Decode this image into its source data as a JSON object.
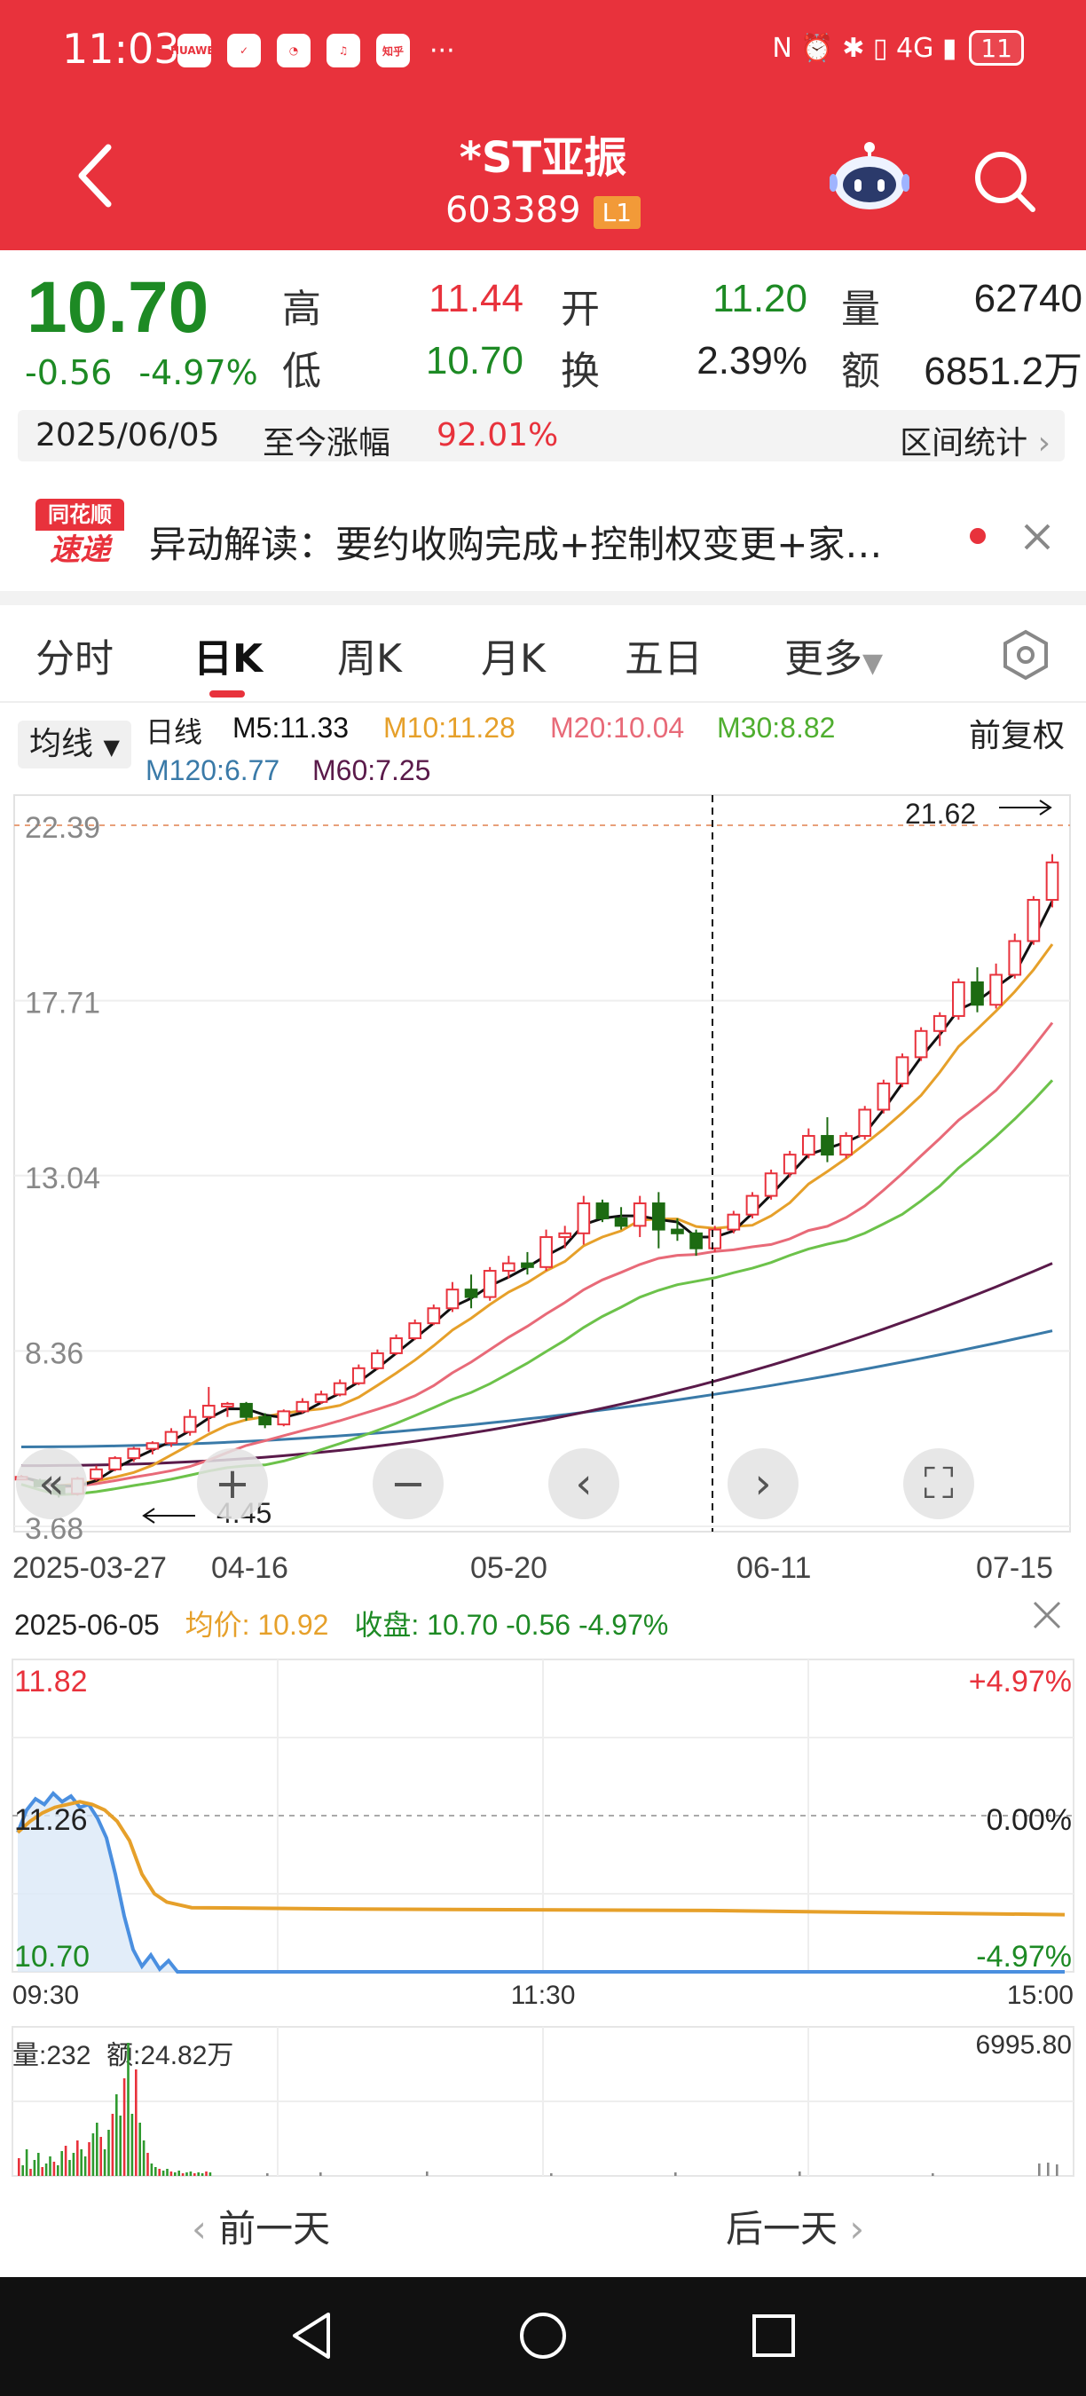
{
  "status": {
    "time": "11:03",
    "apps": [
      "HUAWEI",
      "✓",
      "◔",
      "♫",
      "知乎"
    ],
    "dots": "···",
    "icons": "N ⏰ ✱ ▯ 4G ▮",
    "battery": "11"
  },
  "header": {
    "title": "*ST亚振",
    "code": "603389",
    "level": "L1"
  },
  "quote": {
    "price": "10.70",
    "change": "-0.56",
    "change_pct": "-4.97%",
    "high_label": "高",
    "high": "11.44",
    "low_label": "低",
    "low": "10.70",
    "open_label": "开",
    "open": "11.20",
    "turn_label": "换",
    "turn": "2.39%",
    "vol_label": "量",
    "vol": "62740",
    "amt_label": "额",
    "amt": "6851.2万"
  },
  "range": {
    "date": "2025/06/05",
    "label": "至今涨幅",
    "pct": "92.01%",
    "stats": "区间统计"
  },
  "news": {
    "logo_top": "同花顺",
    "logo_bottom": "速递",
    "text": "异动解读：要约收购完成+控制权变更+家…"
  },
  "tabs": [
    "分时",
    "日K",
    "周K",
    "月K",
    "五日",
    "更多"
  ],
  "indicators": {
    "button": "均线",
    "line": "日线",
    "m5": "M5:11.33",
    "m10": "M10:11.28",
    "m20": "M20:10.04",
    "m30": "M30:8.82",
    "m120": "M120:6.77",
    "m60": "M60:7.25",
    "adjust": "前复权"
  },
  "colors": {
    "up": "#e8323c",
    "down": "#1d6b12",
    "m5": "#111111",
    "m10": "#e6a02a",
    "m20": "#e86a78",
    "m30": "#6cc24a",
    "m60": "#5a1a4a",
    "m120": "#3a7aa8"
  },
  "chart_data": [
    {
      "type": "candlestick",
      "y_ticks": [
        "22.39",
        "17.71",
        "13.04",
        "8.36",
        "3.68"
      ],
      "ylim": [
        3.68,
        22.39
      ],
      "x_ticks": [
        "2025-03-27",
        "04-16",
        "05-20",
        "06-11",
        "07-15"
      ],
      "max_label": "21.62",
      "min_label": "4.45",
      "candles": [
        [
          5.0,
          5.05,
          4.95,
          5.0
        ],
        [
          4.9,
          4.95,
          4.75,
          4.75
        ],
        [
          4.75,
          4.8,
          4.45,
          4.55
        ],
        [
          4.55,
          5.0,
          4.5,
          4.95
        ],
        [
          4.95,
          5.3,
          4.9,
          5.2
        ],
        [
          5.2,
          5.55,
          5.15,
          5.5
        ],
        [
          5.5,
          5.8,
          5.4,
          5.75
        ],
        [
          5.75,
          5.95,
          5.6,
          5.9
        ],
        [
          5.9,
          6.3,
          5.8,
          6.2
        ],
        [
          6.2,
          6.8,
          6.1,
          6.6
        ],
        [
          6.6,
          7.4,
          6.2,
          6.9
        ],
        [
          6.9,
          7.0,
          6.6,
          6.95
        ],
        [
          6.95,
          7.0,
          6.5,
          6.6
        ],
        [
          6.6,
          6.7,
          6.3,
          6.4
        ],
        [
          6.4,
          6.8,
          6.35,
          6.75
        ],
        [
          6.75,
          7.1,
          6.7,
          7.0
        ],
        [
          7.0,
          7.3,
          6.95,
          7.2
        ],
        [
          7.2,
          7.6,
          7.15,
          7.5
        ],
        [
          7.5,
          8.0,
          7.45,
          7.9
        ],
        [
          7.9,
          8.4,
          7.85,
          8.3
        ],
        [
          8.3,
          8.8,
          8.25,
          8.7
        ],
        [
          8.7,
          9.2,
          8.65,
          9.1
        ],
        [
          9.1,
          9.6,
          9.05,
          9.5
        ],
        [
          9.5,
          10.2,
          9.4,
          10.0
        ],
        [
          10.0,
          10.4,
          9.5,
          9.8
        ],
        [
          9.8,
          10.6,
          9.7,
          10.5
        ],
        [
          10.5,
          10.9,
          10.3,
          10.7
        ],
        [
          10.7,
          11.0,
          10.4,
          10.6
        ],
        [
          10.6,
          11.6,
          10.5,
          11.4
        ],
        [
          11.4,
          11.7,
          11.1,
          11.5
        ],
        [
          11.5,
          12.5,
          11.2,
          12.3
        ],
        [
          12.3,
          12.4,
          11.8,
          11.9
        ],
        [
          11.9,
          12.2,
          11.6,
          11.7
        ],
        [
          11.7,
          12.5,
          11.4,
          12.3
        ],
        [
          12.3,
          12.6,
          11.1,
          11.6
        ],
        [
          11.6,
          11.9,
          11.3,
          11.5
        ],
        [
          11.5,
          11.6,
          10.9,
          11.1
        ],
        [
          11.1,
          11.7,
          11.0,
          11.6
        ],
        [
          11.6,
          12.1,
          11.5,
          12.0
        ],
        [
          12.0,
          12.6,
          11.9,
          12.5
        ],
        [
          12.5,
          13.2,
          12.4,
          13.1
        ],
        [
          13.1,
          13.7,
          13.0,
          13.6
        ],
        [
          13.6,
          14.3,
          13.5,
          14.1
        ],
        [
          14.1,
          14.6,
          13.4,
          13.6
        ],
        [
          13.6,
          14.2,
          13.5,
          14.1
        ],
        [
          14.1,
          14.9,
          14.0,
          14.8
        ],
        [
          14.8,
          15.6,
          14.7,
          15.5
        ],
        [
          15.5,
          16.3,
          15.4,
          16.2
        ],
        [
          16.2,
          17.0,
          16.1,
          16.9
        ],
        [
          16.9,
          17.4,
          16.5,
          17.3
        ],
        [
          17.3,
          18.3,
          17.2,
          18.2
        ],
        [
          18.2,
          18.6,
          17.4,
          17.6
        ],
        [
          17.6,
          18.7,
          17.5,
          18.4
        ],
        [
          18.4,
          19.5,
          18.3,
          19.3
        ],
        [
          19.3,
          20.5,
          19.2,
          20.4
        ],
        [
          20.4,
          21.62,
          20.2,
          21.4
        ]
      ]
    },
    {
      "type": "line",
      "title_date": "2025-06-05",
      "avg_label": "均价:",
      "avg": "10.92",
      "close_label": "收盘:",
      "close": "10.70 -0.56 -4.97%",
      "y_left": [
        "11.82",
        "11.26",
        "10.70"
      ],
      "y_right": [
        "+4.97%",
        "0.00%",
        "-4.97%"
      ],
      "x_ticks": [
        "09:30",
        "11:30",
        "15:00"
      ],
      "ylim": [
        10.7,
        11.82
      ]
    },
    {
      "type": "bar",
      "vol_label": "量:232",
      "amt_label": "额:24.82万",
      "max_label": "6995.80"
    }
  ],
  "footer": {
    "prev": "前一天",
    "next": "后一天"
  }
}
